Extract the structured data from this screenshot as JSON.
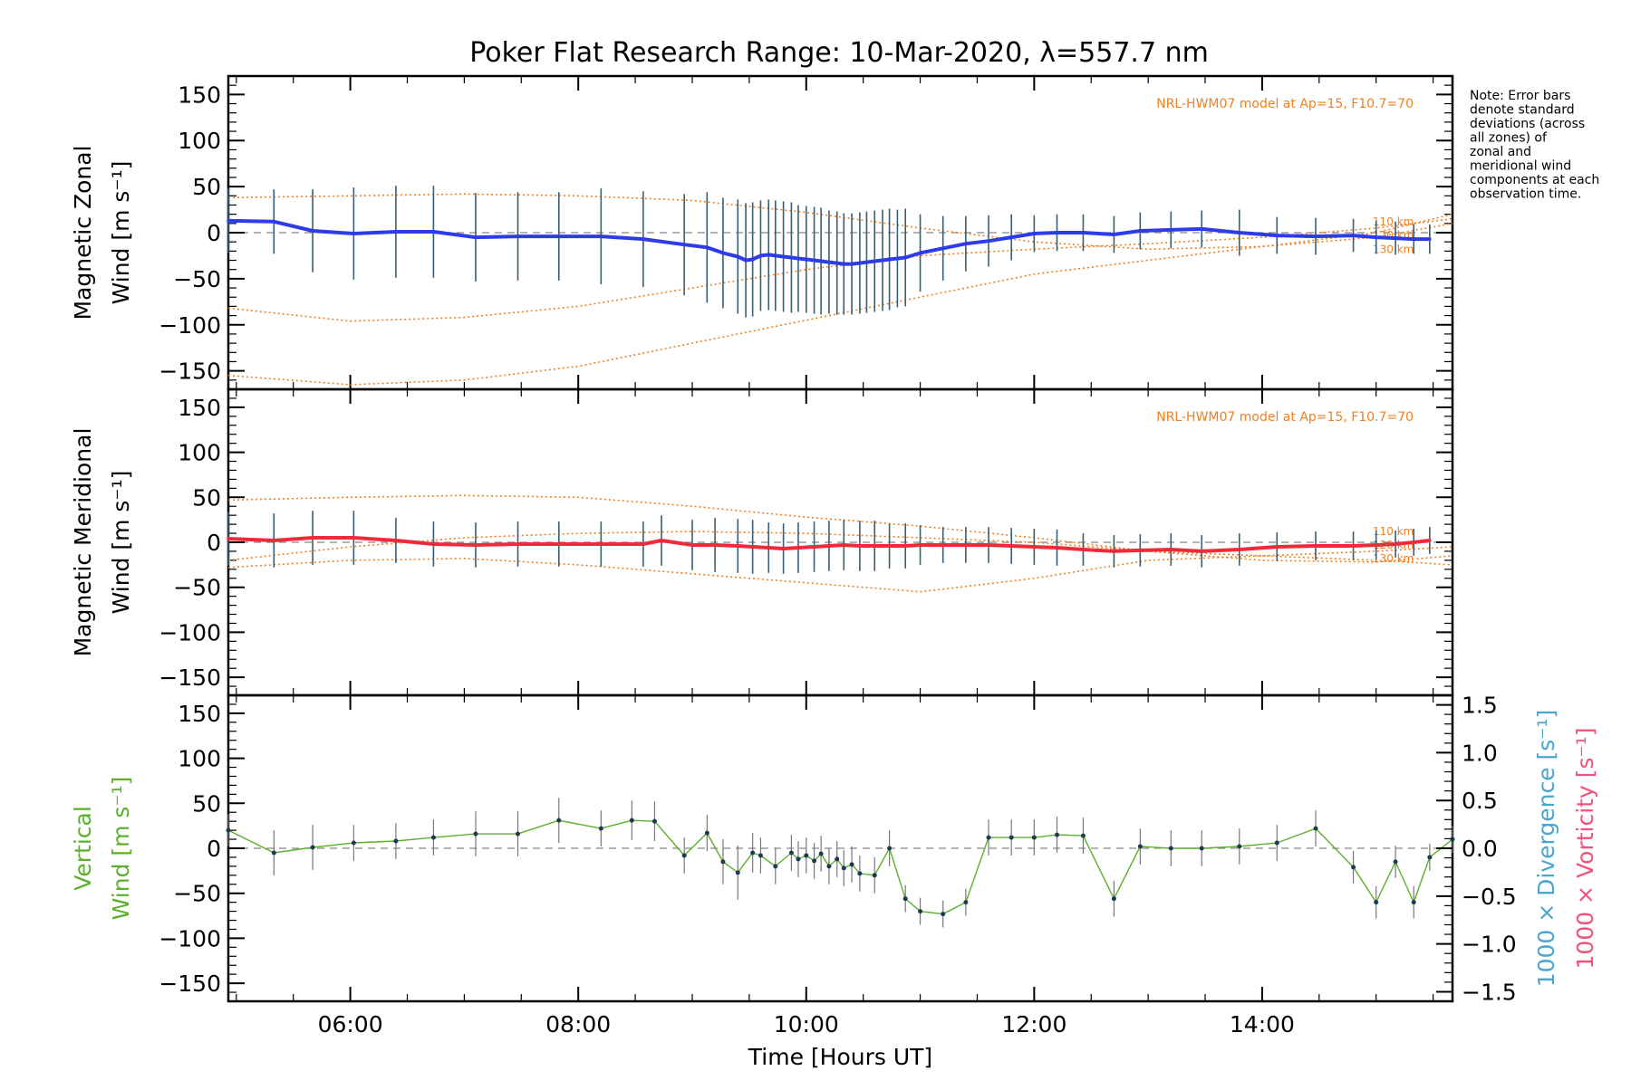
{
  "chart_data": {
    "type": "line",
    "title": "Poker Flat Research Range: 10-Mar-2020, λ=557.7 nm",
    "note": "Note: Error bars denote standard deviations (across all zones) of zonal and meridional wind components at each observation time.",
    "xlabel": "Time [Hours UT]",
    "x_ticks": [
      "06:00",
      "08:00",
      "10:00",
      "12:00",
      "14:00"
    ],
    "x_tick_hours": [
      6,
      8,
      10,
      12,
      14
    ],
    "xlim_hours": [
      4.93,
      15.67
    ],
    "colors": {
      "zonal": "#2e3be8",
      "meridional": "#ee2b3a",
      "vertical": "#5cb02c",
      "model": "#f08020",
      "scatter": "#a9aef0",
      "divergence_label": "#4aa6cf",
      "vorticity_label": "#f0527d"
    },
    "panels": [
      {
        "id": "zonal",
        "ylabel": "Magnetic Zonal Wind [m s⁻¹]",
        "ylim": [
          -170,
          170
        ],
        "y_ticks": [
          -150,
          -100,
          -50,
          0,
          50,
          100,
          150
        ],
        "model_label": "NRL-HWM07 model at Ap=15, F10.7=70",
        "altitude_labels": [
          "110 km",
          "120 km",
          "130 km"
        ],
        "series": [
          {
            "name": "Magnetic Zonal Wind",
            "x": [
              4.93,
              5.33,
              5.67,
              6.03,
              6.4,
              6.73,
              7.1,
              7.47,
              7.83,
              8.2,
              8.57,
              8.93,
              9.13,
              9.27,
              9.4,
              9.47,
              9.53,
              9.6,
              9.67,
              9.73,
              9.8,
              9.87,
              9.93,
              10.0,
              10.07,
              10.13,
              10.2,
              10.27,
              10.33,
              10.4,
              10.47,
              10.53,
              10.6,
              10.67,
              10.73,
              10.8,
              10.87,
              11.0,
              11.2,
              11.4,
              11.6,
              11.8,
              12.0,
              12.2,
              12.43,
              12.7,
              12.93,
              13.2,
              13.47,
              13.8,
              14.13,
              14.47,
              14.8,
              15.0,
              15.17,
              15.33,
              15.47
            ],
            "y": [
              13,
              12,
              2,
              -1,
              1,
              1,
              -5,
              -4,
              -4,
              -4,
              -7,
              -13,
              -16,
              -22,
              -26,
              -30,
              -29,
              -25,
              -24,
              -25,
              -26,
              -27,
              -28,
              -29,
              -30,
              -31,
              -32,
              -33,
              -34,
              -34,
              -33,
              -32,
              -31,
              -30,
              -29,
              -28,
              -27,
              -22,
              -17,
              -12,
              -9,
              -5,
              -1,
              0,
              0,
              -2,
              2,
              3,
              4,
              0,
              -3,
              -4,
              -3,
              -5,
              -6,
              -7,
              -7
            ],
            "err": [
              35,
              35,
              45,
              50,
              50,
              50,
              48,
              48,
              48,
              52,
              52,
              55,
              60,
              60,
              62,
              62,
              62,
              60,
              60,
              60,
              60,
              60,
              58,
              58,
              58,
              58,
              56,
              56,
              55,
              55,
              55,
              55,
              55,
              55,
              55,
              53,
              53,
              42,
              35,
              30,
              28,
              25,
              20,
              20,
              20,
              20,
              20,
              20,
              20,
              25,
              20,
              20,
              18,
              18,
              18,
              16,
              16
            ]
          }
        ],
        "model_curves": [
          {
            "name": "upper",
            "x": [
              4.93,
              6,
              7,
              8,
              9,
              10,
              11,
              12,
              13,
              14,
              15,
              15.67
            ],
            "y": [
              38,
              40,
              42,
              40,
              35,
              22,
              5,
              -10,
              -18,
              -15,
              -5,
              10
            ]
          },
          {
            "name": "middle",
            "x": [
              4.93,
              6,
              7,
              8,
              9,
              10,
              11,
              12,
              13,
              14,
              15,
              15.67
            ],
            "y": [
              -82,
              -96,
              -92,
              -80,
              -60,
              -40,
              -25,
              -18,
              -12,
              -5,
              5,
              15
            ]
          },
          {
            "name": "lower",
            "x": [
              4.93,
              6,
              7,
              8,
              9,
              10,
              11,
              12,
              13,
              14,
              15,
              15.67
            ],
            "y": [
              -155,
              -165,
              -160,
              -145,
              -120,
              -95,
              -70,
              -45,
              -30,
              -15,
              0,
              20
            ]
          }
        ]
      },
      {
        "id": "meridional",
        "ylabel": "Magnetic Meridional Wind [m s⁻¹]",
        "ylim": [
          -170,
          170
        ],
        "y_ticks": [
          -150,
          -100,
          -50,
          0,
          50,
          100,
          150
        ],
        "model_label": "NRL-HWM07 model at Ap=15, F10.7=70",
        "altitude_labels": [
          "110 km",
          "120 km",
          "130 km"
        ],
        "series": [
          {
            "name": "Magnetic Meridional Wind",
            "x": [
              4.93,
              5.33,
              5.67,
              6.03,
              6.4,
              6.73,
              7.1,
              7.47,
              7.83,
              8.2,
              8.57,
              8.73,
              9.0,
              9.2,
              9.4,
              9.53,
              9.67,
              9.8,
              9.93,
              10.07,
              10.2,
              10.33,
              10.47,
              10.6,
              10.73,
              10.87,
              11.0,
              11.2,
              11.4,
              11.6,
              11.8,
              12.0,
              12.2,
              12.43,
              12.7,
              12.93,
              13.2,
              13.47,
              13.8,
              14.13,
              14.47,
              14.8,
              15.0,
              15.17,
              15.33,
              15.47
            ],
            "y": [
              4,
              2,
              5,
              5,
              2,
              -2,
              -3,
              -2,
              -2,
              -2,
              -2,
              2,
              -3,
              -3,
              -4,
              -5,
              -6,
              -7,
              -6,
              -5,
              -4,
              -3,
              -4,
              -4,
              -4,
              -4,
              -3,
              -3,
              -3,
              -3,
              -4,
              -5,
              -6,
              -8,
              -10,
              -9,
              -8,
              -10,
              -8,
              -5,
              -4,
              -4,
              -3,
              -2,
              0,
              2
            ],
            "err": [
              30,
              30,
              30,
              30,
              25,
              25,
              25,
              25,
              25,
              25,
              25,
              28,
              28,
              30,
              30,
              30,
              28,
              28,
              28,
              28,
              28,
              28,
              28,
              28,
              25,
              25,
              22,
              20,
              20,
              20,
              20,
              20,
              20,
              18,
              18,
              18,
              18,
              18,
              18,
              16,
              16,
              16,
              16,
              15,
              15,
              15
            ]
          }
        ],
        "model_curves": [
          {
            "name": "upper",
            "x": [
              4.93,
              6,
              7,
              8,
              9,
              10,
              11,
              12,
              13,
              14,
              15,
              15.67
            ],
            "y": [
              47,
              50,
              52,
              50,
              40,
              28,
              18,
              5,
              -10,
              -20,
              -22,
              -15
            ]
          },
          {
            "name": "middle",
            "x": [
              4.93,
              6,
              7,
              8,
              9,
              10,
              11,
              12,
              13,
              14,
              15,
              15.67
            ],
            "y": [
              -20,
              -5,
              5,
              10,
              12,
              10,
              5,
              0,
              -10,
              -15,
              -10,
              -5
            ]
          },
          {
            "name": "lower",
            "x": [
              4.93,
              6,
              7,
              8,
              9,
              10,
              11,
              12,
              13,
              14,
              15,
              15.67
            ],
            "y": [
              -28,
              -20,
              -18,
              -25,
              -35,
              -45,
              -55,
              -40,
              -20,
              -15,
              -20,
              -25
            ]
          }
        ]
      },
      {
        "id": "vertical",
        "ylabel": "Vertical Wind [m s⁻¹]",
        "ylim": [
          -170,
          170
        ],
        "y_ticks": [
          -150,
          -100,
          -50,
          0,
          50,
          100,
          150
        ],
        "y2_label_divergence": "1000 × Divergence [s⁻¹]",
        "y2_label_vorticity": "1000 × Vorticity [s⁻¹]",
        "y2_ticks": [
          "-1.5",
          "-1.0",
          "-0.5",
          "0.0",
          "0.5",
          "1.0",
          "1.5"
        ],
        "series": [
          {
            "name": "Vertical Wind",
            "x": [
              4.93,
              5.33,
              5.67,
              6.03,
              6.4,
              6.73,
              7.1,
              7.47,
              7.83,
              8.2,
              8.47,
              8.67,
              8.93,
              9.13,
              9.27,
              9.4,
              9.53,
              9.6,
              9.73,
              9.87,
              9.93,
              10.0,
              10.07,
              10.13,
              10.2,
              10.27,
              10.33,
              10.4,
              10.47,
              10.6,
              10.73,
              10.87,
              11.0,
              11.2,
              11.4,
              11.6,
              11.8,
              12.0,
              12.2,
              12.43,
              12.7,
              12.93,
              13.2,
              13.47,
              13.8,
              14.13,
              14.47,
              14.8,
              15.0,
              15.17,
              15.33,
              15.47,
              15.67
            ],
            "y": [
              20,
              -5,
              1,
              6,
              8,
              12,
              16,
              16,
              31,
              22,
              31,
              30,
              -8,
              17,
              -15,
              -27,
              -5,
              -8,
              -20,
              -5,
              -12,
              -8,
              -14,
              -6,
              -20,
              -12,
              -22,
              -18,
              -28,
              -30,
              0,
              -56,
              -70,
              -73,
              -60,
              12,
              12,
              12,
              15,
              14,
              -56,
              2,
              0,
              0,
              2,
              6,
              22,
              -21,
              -60,
              -15,
              -60,
              -10,
              10
            ],
            "err": [
              18,
              25,
              25,
              20,
              20,
              20,
              25,
              25,
              25,
              20,
              22,
              22,
              20,
              20,
              25,
              30,
              22,
              20,
              20,
              20,
              20,
              20,
              20,
              20,
              20,
              20,
              20,
              20,
              20,
              20,
              20,
              15,
              15,
              15,
              15,
              20,
              20,
              20,
              20,
              20,
              20,
              20,
              20,
              20,
              20,
              20,
              20,
              18,
              18,
              18,
              18,
              15,
              15
            ]
          }
        ]
      }
    ],
    "grid": false,
    "legend": "none"
  }
}
